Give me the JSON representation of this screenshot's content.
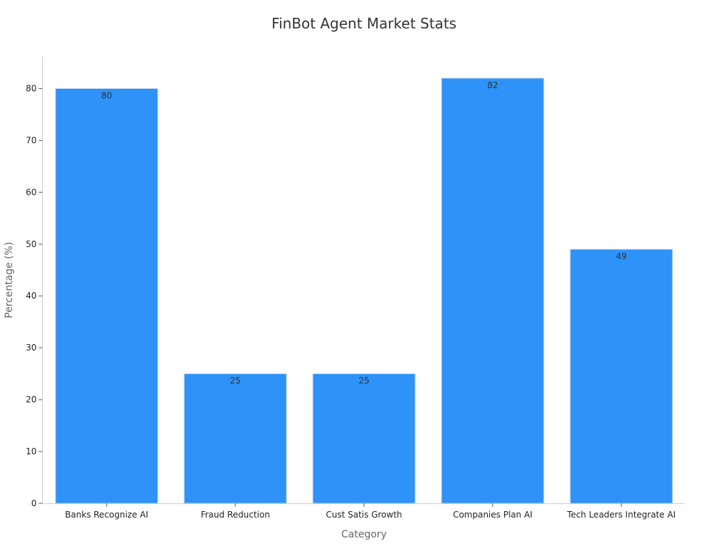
{
  "chart_data": {
    "type": "bar",
    "title": "FinBot Agent Market Stats",
    "xlabel": "Category",
    "ylabel": "Percentage (%)",
    "categories": [
      "Banks Recognize AI",
      "Fraud Reduction",
      "Cust Satis Growth",
      "Companies Plan AI",
      "Tech Leaders Integrate AI"
    ],
    "values": [
      80,
      25,
      25,
      82,
      49
    ],
    "value_labels": [
      "80",
      "25",
      "25",
      "82",
      "49"
    ],
    "ylim": [
      0,
      86.1
    ],
    "yticks": [
      0,
      10,
      20,
      30,
      40,
      50,
      60,
      70,
      80
    ],
    "ytick_labels": [
      "0",
      "10",
      "20",
      "30",
      "40",
      "50",
      "60",
      "70",
      "80"
    ],
    "grid": false,
    "legend": "none",
    "bar_color": "#2e92f8",
    "bar_edge_color": "#c9dcf2",
    "axis_color": "#cccccc",
    "tick_color": "#555555"
  }
}
